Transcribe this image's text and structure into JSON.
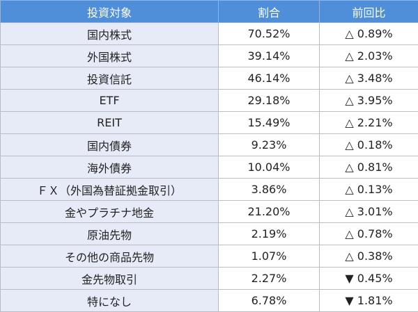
{
  "table": {
    "header": [
      "投資対象",
      "割合",
      "前回比"
    ],
    "rows": [
      [
        "国内株式",
        "70.52%",
        "△ 0.89%"
      ],
      [
        "外国株式",
        "39.14%",
        "△ 2.03%"
      ],
      [
        "投資信託",
        "46.14%",
        "△ 3.48%"
      ],
      [
        "ETF",
        "29.18%",
        "△ 3.95%"
      ],
      [
        "REIT",
        "15.49%",
        "△ 2.21%"
      ],
      [
        "国内債券",
        "9.23%",
        "△ 0.18%"
      ],
      [
        "海外債券",
        "10.04%",
        "△ 0.81%"
      ],
      [
        "ＦＸ（外国為替証拠金取引）",
        "3.86%",
        "△ 0.13%"
      ],
      [
        "金やプラチナ地金",
        "21.20%",
        "△ 3.01%"
      ],
      [
        "原油先物",
        "2.19%",
        "△ 0.78%"
      ],
      [
        "その他の商品先物",
        "1.07%",
        "△ 0.38%"
      ],
      [
        "金先物取引",
        "2.27%",
        "▼ 0.45%"
      ],
      [
        "特になし",
        "6.78%",
        "▼ 1.81%"
      ]
    ]
  }
}
